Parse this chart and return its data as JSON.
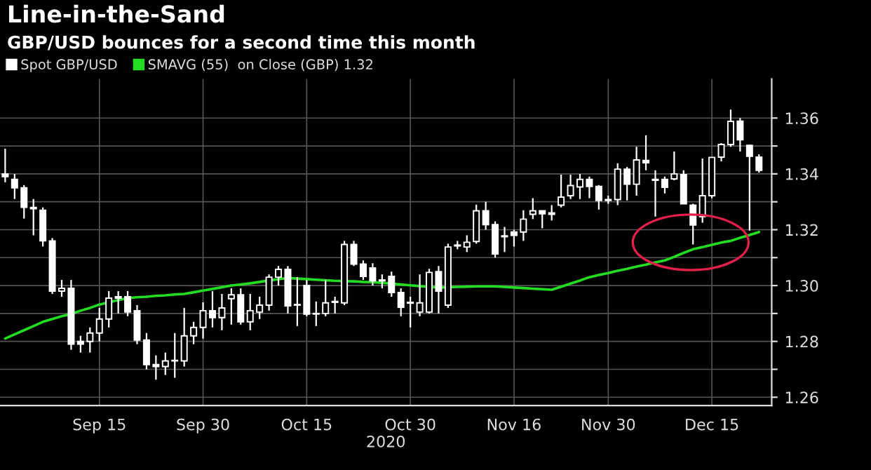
{
  "chart_data": {
    "type": "candlestick",
    "title": "Line-in-the-Sand",
    "subtitle": "GBP/USD bounces for a second time this month",
    "xlabel": "2020",
    "categories": [
      null,
      null,
      null,
      null,
      null,
      null,
      null,
      null,
      null,
      null,
      "Sep 15",
      null,
      null,
      null,
      null,
      null,
      null,
      null,
      null,
      null,
      null,
      "Sep 30",
      null,
      null,
      null,
      null,
      null,
      null,
      null,
      null,
      null,
      null,
      "Oct 15",
      null,
      null,
      null,
      null,
      null,
      null,
      null,
      null,
      null,
      null,
      "Oct 30",
      null,
      null,
      null,
      null,
      null,
      null,
      null,
      null,
      null,
      null,
      "Nov 16",
      null,
      null,
      null,
      null,
      null,
      null,
      null,
      null,
      null,
      "Nov 30",
      null,
      null,
      null,
      null,
      null,
      null,
      null,
      null,
      null,
      null,
      "Dec 15",
      null,
      null,
      null,
      null,
      null
    ],
    "series": [
      {
        "name": "Spot GBP/USD",
        "color": "#ffffff",
        "ohlc": [
          [
            1.34,
            1.349,
            1.337,
            1.339
          ],
          [
            1.338,
            1.34,
            1.331,
            1.335
          ],
          [
            1.335,
            1.336,
            1.324,
            1.328
          ],
          [
            1.328,
            1.331,
            1.318,
            1.3275
          ],
          [
            1.327,
            1.328,
            1.314,
            1.316
          ],
          [
            1.316,
            1.317,
            1.297,
            1.298
          ],
          [
            1.298,
            1.302,
            1.296,
            1.299
          ],
          [
            1.299,
            1.302,
            1.277,
            1.279
          ],
          [
            1.28,
            1.282,
            1.276,
            1.279
          ],
          [
            1.28,
            1.285,
            1.276,
            1.283
          ],
          [
            1.283,
            1.292,
            1.28,
            1.288
          ],
          [
            1.288,
            1.298,
            1.285,
            1.2955
          ],
          [
            1.2955,
            1.298,
            1.29,
            1.296
          ],
          [
            1.296,
            1.298,
            1.289,
            1.2905
          ],
          [
            1.291,
            1.293,
            1.279,
            1.2805
          ],
          [
            1.2805,
            1.283,
            1.27,
            1.2717
          ],
          [
            1.2717,
            1.275,
            1.2663,
            1.271
          ],
          [
            1.271,
            1.276,
            1.268,
            1.273
          ],
          [
            1.273,
            1.283,
            1.267,
            1.2732
          ],
          [
            1.273,
            1.292,
            1.271,
            1.282
          ],
          [
            1.282,
            1.287,
            1.279,
            1.285
          ],
          [
            1.285,
            1.294,
            1.281,
            1.291
          ],
          [
            1.291,
            1.298,
            1.285,
            1.2885
          ],
          [
            1.2885,
            1.297,
            1.284,
            1.292
          ],
          [
            1.2953,
            1.299,
            1.286,
            1.2967
          ],
          [
            1.2967,
            1.299,
            1.286,
            1.287
          ],
          [
            1.287,
            1.297,
            1.284,
            1.291
          ],
          [
            1.2905,
            1.296,
            1.288,
            1.293
          ],
          [
            1.293,
            1.304,
            1.291,
            1.303
          ],
          [
            1.303,
            1.307,
            1.3,
            1.3058
          ],
          [
            1.3058,
            1.307,
            1.29,
            1.2927
          ],
          [
            1.293,
            1.303,
            1.2855,
            1.2932
          ],
          [
            1.3,
            1.302,
            1.289,
            1.2898
          ],
          [
            1.29,
            1.2943,
            1.2855,
            1.2898
          ],
          [
            1.29,
            1.302,
            1.289,
            1.2938
          ],
          [
            1.294,
            1.296,
            1.29,
            1.2943
          ],
          [
            1.2938,
            1.316,
            1.293,
            1.3147
          ],
          [
            1.3147,
            1.316,
            1.307,
            1.3077
          ],
          [
            1.3077,
            1.309,
            1.302,
            1.3033
          ],
          [
            1.3063,
            1.308,
            1.3,
            1.3017
          ],
          [
            1.3017,
            1.304,
            1.299,
            1.302
          ],
          [
            1.3033,
            1.305,
            1.296,
            1.2975
          ],
          [
            1.2975,
            1.299,
            1.289,
            1.2922
          ],
          [
            1.2937,
            1.296,
            1.285,
            1.294
          ],
          [
            1.2905,
            1.304,
            1.289,
            1.2938
          ],
          [
            1.2905,
            1.306,
            1.29,
            1.3047
          ],
          [
            1.305,
            1.307,
            1.29,
            1.298
          ],
          [
            1.293,
            1.315,
            1.292,
            1.3138
          ],
          [
            1.3142,
            1.316,
            1.313,
            1.3145
          ],
          [
            1.3138,
            1.318,
            1.312,
            1.3155
          ],
          [
            1.3158,
            1.329,
            1.315,
            1.3268
          ],
          [
            1.3268,
            1.33,
            1.32,
            1.3218
          ],
          [
            1.3218,
            1.323,
            1.31,
            1.3113
          ],
          [
            1.3175,
            1.321,
            1.312,
            1.3178
          ],
          [
            1.3192,
            1.32,
            1.314,
            1.318
          ],
          [
            1.3192,
            1.327,
            1.316,
            1.3238
          ],
          [
            1.3255,
            1.3313,
            1.3238,
            1.3268
          ],
          [
            1.3268,
            1.3268,
            1.3205,
            1.3257
          ],
          [
            1.3255,
            1.3288,
            1.3233,
            1.326
          ],
          [
            1.3288,
            1.3397,
            1.328,
            1.3317
          ],
          [
            1.3322,
            1.3397,
            1.331,
            1.3358
          ],
          [
            1.3353,
            1.34,
            1.331,
            1.338
          ],
          [
            1.338,
            1.339,
            1.3313,
            1.3355
          ],
          [
            1.3355,
            1.336,
            1.3272,
            1.3305
          ],
          [
            1.3305,
            1.3322,
            1.3293,
            1.3308
          ],
          [
            1.3308,
            1.3438,
            1.3288,
            1.3417
          ],
          [
            1.3417,
            1.3425,
            1.3305,
            1.3363
          ],
          [
            1.3363,
            1.3497,
            1.3322,
            1.345
          ],
          [
            1.3448,
            1.3538,
            1.3413,
            1.344
          ],
          [
            1.3377,
            1.3413,
            1.3247,
            1.338
          ],
          [
            1.338,
            1.339,
            1.333,
            1.3352
          ],
          [
            1.3382,
            1.348,
            1.3377,
            1.34
          ],
          [
            1.3397,
            1.3413,
            1.3293,
            1.3293
          ],
          [
            1.3288,
            1.3293,
            1.3147,
            1.3217
          ],
          [
            1.3247,
            1.3455,
            1.3225,
            1.3322
          ],
          [
            1.3322,
            1.346,
            1.3313,
            1.3459
          ],
          [
            1.346,
            1.351,
            1.3445,
            1.3505
          ],
          [
            1.3505,
            1.363,
            1.3497,
            1.3588
          ],
          [
            1.3589,
            1.36,
            1.348,
            1.3522
          ],
          [
            1.3502,
            1.3505,
            1.3197,
            1.3463
          ],
          [
            1.346,
            1.347,
            1.3405,
            1.3413
          ]
        ]
      },
      {
        "type": "line",
        "name": "SMAVG (55)  on Close (GBP) 1.32",
        "color": "#22dd22",
        "values": [
          1.281,
          1.2825,
          1.284,
          1.2855,
          1.287,
          1.288,
          1.289,
          1.2898,
          1.291,
          1.292,
          1.2932,
          1.294,
          1.2948,
          1.2955,
          1.2958,
          1.296,
          1.2963,
          1.2965,
          1.2968,
          1.297,
          1.2976,
          1.2982,
          1.2988,
          1.2994,
          1.3,
          1.3004,
          1.3008,
          1.3013,
          1.3018,
          1.3023,
          1.3027,
          1.3025,
          1.3023,
          1.3021,
          1.3019,
          1.3017,
          1.3016,
          1.3015,
          1.3013,
          1.3012,
          1.301,
          1.3007,
          1.3004,
          1.3001,
          1.2998,
          1.2995,
          1.2993,
          1.2994,
          1.2995,
          1.2996,
          1.2997,
          1.2997,
          1.2997,
          1.2995,
          1.2993,
          1.2991,
          1.2989,
          1.2987,
          1.2985,
          1.2996,
          1.3007,
          1.3018,
          1.303,
          1.3038,
          1.3045,
          1.3053,
          1.306,
          1.3068,
          1.3075,
          1.3083,
          1.309,
          1.3103,
          1.3117,
          1.313,
          1.3138,
          1.3146,
          1.3154,
          1.316,
          1.3171,
          1.3181,
          1.3192
        ]
      }
    ],
    "ylim": [
      1.257,
      1.374
    ],
    "yticks": [
      {
        "value": 1.26,
        "label": "1.26"
      },
      {
        "value": 1.27,
        "label": null
      },
      {
        "value": 1.28,
        "label": "1.28"
      },
      {
        "value": 1.29,
        "label": null
      },
      {
        "value": 1.3,
        "label": "1.30"
      },
      {
        "value": 1.31,
        "label": null
      },
      {
        "value": 1.32,
        "label": "1.32"
      },
      {
        "value": 1.33,
        "label": null
      },
      {
        "value": 1.34,
        "label": "1.34"
      },
      {
        "value": 1.35,
        "label": null
      },
      {
        "value": 1.36,
        "label": "1.36"
      }
    ],
    "grid": true,
    "legend": "top left"
  }
}
